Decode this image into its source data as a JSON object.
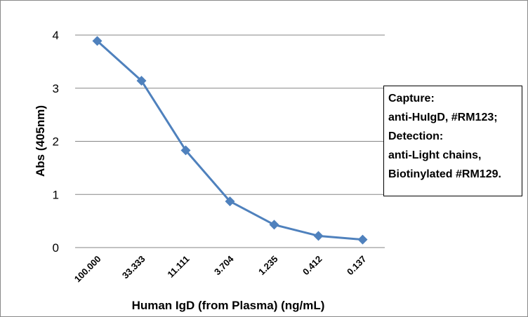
{
  "chart_data": {
    "type": "line",
    "title": "",
    "xlabel": "Human IgD (from Plasma) (ng/mL)",
    "ylabel": "Abs (405nm)",
    "categories": [
      "100.000",
      "33.333",
      "11.111",
      "3.704",
      "1.235",
      "0.412",
      "0.137"
    ],
    "series": [
      {
        "values": [
          3.89,
          3.14,
          1.83,
          0.87,
          0.43,
          0.22,
          0.15
        ]
      }
    ],
    "ylim": [
      0,
      4
    ],
    "yticks": [
      "0",
      "1",
      "2",
      "3",
      "4"
    ],
    "grid": true,
    "legend": "none",
    "marker": "diamond",
    "line_color": "#4F81BD",
    "annotation": [
      "Capture:",
      "anti-HuIgD, #RM123;",
      "Detection:",
      "anti-Light chains,",
      "Biotinylated #RM129."
    ]
  }
}
